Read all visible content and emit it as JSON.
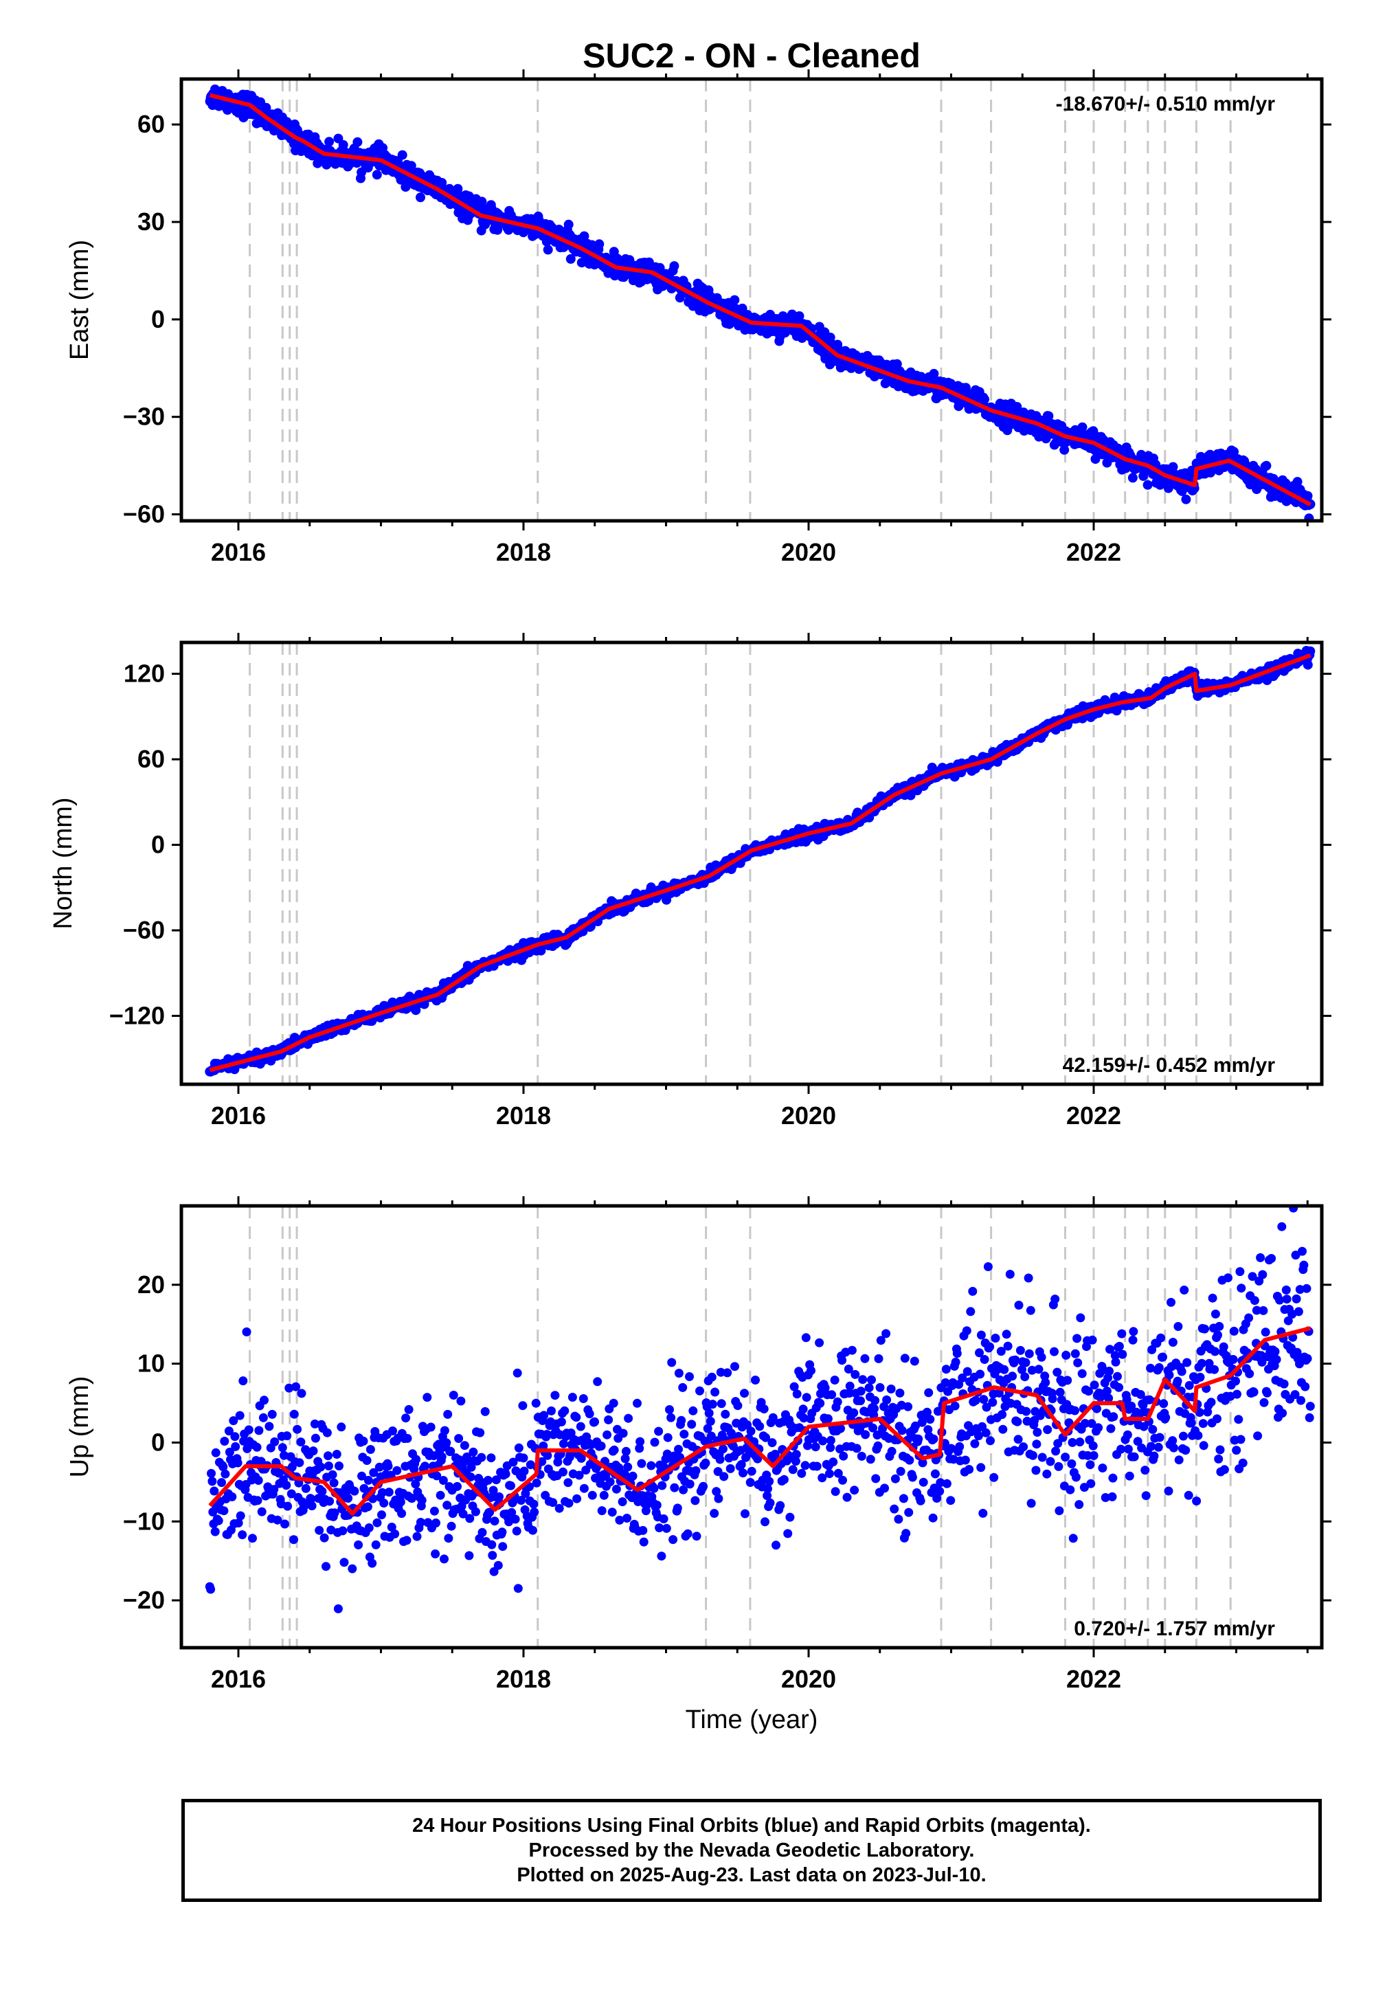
{
  "title": "SUC2  - ON - Cleaned",
  "xlabel": "Time (year)",
  "footer": {
    "line1": "24 Hour Positions Using Final Orbits (blue) and Rapid Orbits (magenta).",
    "line2": "Processed by the Nevada Geodetic Laboratory.",
    "line3": "Plotted on 2025-Aug-23. Last data on 2023-Jul-10."
  },
  "colors": {
    "points": "#0000ff",
    "model": "#ff0000",
    "steps": "#c8c8c8",
    "frame": "#000000"
  },
  "chart_data": [
    {
      "type": "scatter",
      "name": "east",
      "ylabel": "East (mm)",
      "rate_label": "-18.670+/- 0.510 mm/yr",
      "rate_position": "top-right",
      "xlim": [
        2015.6,
        2023.6
      ],
      "ylim": [
        -62,
        74
      ],
      "xticks": [
        2016,
        2018,
        2020,
        2022
      ],
      "yticks": [
        60,
        30,
        0,
        -30,
        -60
      ],
      "ytick_labels": [
        "60",
        "30",
        "0",
        "−30",
        "−60"
      ],
      "step_epochs": [
        2016.08,
        2016.31,
        2016.36,
        2016.41,
        2018.1,
        2019.28,
        2019.59,
        2020.93,
        2021.28,
        2021.8,
        2022.0,
        2022.22,
        2022.38,
        2022.5,
        2022.72,
        2022.96
      ],
      "model": {
        "x": [
          2015.8,
          2016.08,
          2016.2,
          2016.4,
          2016.45,
          2016.6,
          2017.0,
          2017.4,
          2017.7,
          2018.1,
          2018.4,
          2018.65,
          2018.9,
          2019.3,
          2019.6,
          2019.95,
          2020.2,
          2020.7,
          2020.93,
          2021.28,
          2021.6,
          2021.8,
          2022.0,
          2022.22,
          2022.38,
          2022.5,
          2022.71,
          2022.72,
          2022.95,
          2023.52
        ],
        "y": [
          69,
          66,
          62,
          56,
          55,
          51,
          49,
          40,
          32,
          28,
          22,
          16,
          14.5,
          5,
          -1,
          -2,
          -11,
          -19,
          -21,
          -28,
          -32,
          -36,
          -38,
          -43,
          -45,
          -48,
          -51,
          -46,
          -43.5,
          -57
        ]
      },
      "scatter_spread": 1.8
    },
    {
      "type": "scatter",
      "name": "north",
      "ylabel": "North (mm)",
      "rate_label": "42.159+/- 0.452 mm/yr",
      "rate_position": "bottom-right",
      "xlim": [
        2015.6,
        2023.6
      ],
      "ylim": [
        -168,
        142
      ],
      "xticks": [
        2016,
        2018,
        2020,
        2022
      ],
      "yticks": [
        120,
        60,
        0,
        -60,
        -120
      ],
      "ytick_labels": [
        "120",
        "60",
        "0",
        "−60",
        "−120"
      ],
      "step_epochs": [
        2016.08,
        2016.31,
        2016.36,
        2016.41,
        2018.1,
        2019.28,
        2019.59,
        2020.93,
        2021.28,
        2021.8,
        2022.0,
        2022.22,
        2022.38,
        2022.5,
        2022.72,
        2022.96
      ],
      "model": {
        "x": [
          2015.8,
          2016.3,
          2016.5,
          2017.0,
          2017.4,
          2017.7,
          2018.1,
          2018.3,
          2018.6,
          2019.0,
          2019.3,
          2019.6,
          2020.0,
          2020.3,
          2020.6,
          2020.93,
          2021.28,
          2021.6,
          2021.8,
          2022.0,
          2022.2,
          2022.4,
          2022.5,
          2022.71,
          2022.72,
          2022.96,
          2023.52
        ],
        "y": [
          -158,
          -145,
          -135,
          -118,
          -105,
          -85,
          -70,
          -65,
          -45,
          -32,
          -22,
          -4,
          8,
          15,
          35,
          50,
          60,
          78,
          88,
          95,
          100,
          103,
          110,
          120,
          108,
          112,
          133
        ]
      },
      "scatter_spread": 2
    },
    {
      "type": "scatter",
      "name": "up",
      "ylabel": "Up (mm)",
      "rate_label": "0.720+/- 1.757 mm/yr",
      "rate_position": "bottom-right",
      "xlim": [
        2015.6,
        2023.6
      ],
      "ylim": [
        -26,
        30
      ],
      "xticks": [
        2016,
        2018,
        2020,
        2022
      ],
      "yticks": [
        20,
        10,
        0,
        -10,
        -20
      ],
      "ytick_labels": [
        "20",
        "10",
        "0",
        "−10",
        "−20"
      ],
      "step_epochs": [
        2016.08,
        2016.31,
        2016.36,
        2016.41,
        2018.1,
        2019.28,
        2019.59,
        2020.93,
        2021.28,
        2021.8,
        2022.0,
        2022.22,
        2022.38,
        2022.5,
        2022.72,
        2022.96
      ],
      "model": {
        "x": [
          2015.8,
          2016.05,
          2016.3,
          2016.4,
          2016.6,
          2016.8,
          2017.0,
          2017.5,
          2017.8,
          2018.09,
          2018.1,
          2018.4,
          2018.8,
          2019.28,
          2019.55,
          2019.75,
          2020.0,
          2020.5,
          2020.8,
          2020.92,
          2020.95,
          2021.3,
          2021.6,
          2021.8,
          2022.0,
          2022.2,
          2022.22,
          2022.38,
          2022.5,
          2022.71,
          2022.72,
          2022.96,
          2023.2,
          2023.52
        ],
        "y": [
          -8,
          -3,
          -3,
          -4.5,
          -5,
          -9,
          -5,
          -3,
          -8.5,
          -4,
          -1,
          -1,
          -6,
          -0.5,
          0.5,
          -3,
          2,
          3,
          -2,
          -1.5,
          5,
          7,
          6,
          1,
          5,
          5,
          3,
          3,
          8,
          4,
          7,
          8.5,
          13,
          14.5
        ]
      },
      "scatter_spread": 4.5
    }
  ]
}
